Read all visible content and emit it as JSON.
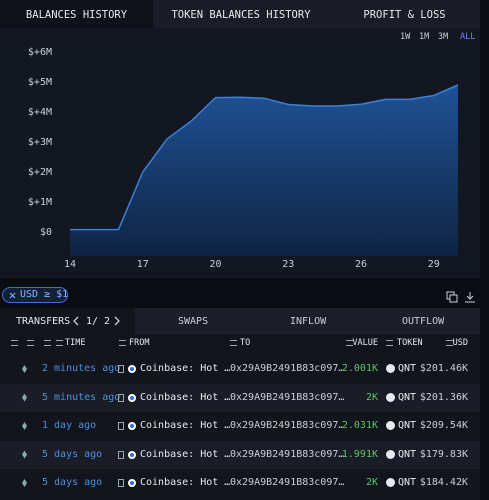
{
  "tabs": [
    "BALANCES HISTORY",
    "TOKEN BALANCES HISTORY",
    "PROFIT & LOSS"
  ],
  "active_tab": 0,
  "range_buttons": [
    "1W",
    "1M",
    "3M",
    "ALL"
  ],
  "active_range": 3,
  "chart": {
    "type": "area",
    "x": [
      14,
      15,
      16,
      17,
      18,
      19,
      20,
      21,
      22,
      23,
      24,
      25,
      26,
      27,
      28,
      29,
      30
    ],
    "series": [
      {
        "color": "#3d7fd6",
        "values": [
          80000,
          80000,
          80000,
          2000000,
          3100000,
          3700000,
          4480000,
          4490000,
          4460000,
          4250000,
          4200000,
          4200000,
          4260000,
          4420000,
          4420000,
          4550000,
          4900000
        ]
      }
    ],
    "xlim": [
      14,
      30
    ],
    "xticks": [
      14,
      17,
      20,
      23,
      26,
      29
    ],
    "ylim": [
      -600000,
      6100000
    ],
    "yticks": [
      {
        "value": 0,
        "label": "$0"
      },
      {
        "value": 1000000,
        "label": "$+1M"
      },
      {
        "value": 2000000,
        "label": "$+2M"
      },
      {
        "value": 3000000,
        "label": "$+3M"
      },
      {
        "value": 4000000,
        "label": "$+4M"
      },
      {
        "value": 5000000,
        "label": "$+5M"
      },
      {
        "value": 6000000,
        "label": "$+6M"
      }
    ],
    "grid": false
  },
  "filter_chip": "USD ≥ $1",
  "transfers": {
    "tabs": [
      "TRANSFERS",
      "SWAPS",
      "INFLOW",
      "OUTFLOW"
    ],
    "page": "1/ 2",
    "columns": [
      "TIME",
      "FROM",
      "TO",
      "VALUE",
      "TOKEN",
      "USD"
    ],
    "rows": [
      [
        "2 minutes ago",
        "Coinbase: Hot …",
        "0x29A9B2491B83c097…",
        "2.001K",
        "QNT",
        "$201.46K"
      ],
      [
        "5 minutes ago",
        "Coinbase: Hot …",
        "0x29A9B2491B83c097…",
        "2K",
        "QNT",
        "$201.36K"
      ],
      [
        "1 day ago",
        "Coinbase: Hot …",
        "0x29A9B2491B83c097…",
        "2.031K",
        "QNT",
        "$209.54K"
      ],
      [
        "5 days ago",
        "Coinbase: Hot …",
        "0x29A9B2491B83c097…",
        "1.991K",
        "QNT",
        "$179.83K"
      ],
      [
        "5 days ago",
        "Coinbase: Hot …",
        "0x29A9B2491B83c097…",
        "2K",
        "QNT",
        "$184.42K"
      ]
    ]
  }
}
